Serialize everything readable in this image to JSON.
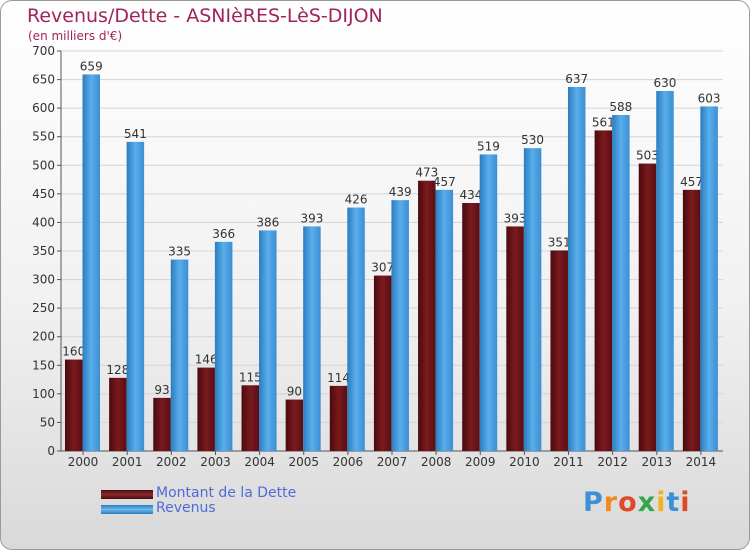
{
  "title": "Revenus/Dette - ASNIèRES-LèS-DIJON",
  "subtitle": "(en milliers d'€)",
  "brand": {
    "text": "Proxiti",
    "colors": [
      "#3d8fd8",
      "#f08a1e",
      "#e0482a",
      "#35a548",
      "#f0b41e",
      "#3d8fd8",
      "#e0482a"
    ]
  },
  "chart_data": {
    "type": "bar",
    "categories": [
      "2000",
      "2001",
      "2002",
      "2003",
      "2004",
      "2005",
      "2006",
      "2007",
      "2008",
      "2009",
      "2010",
      "2011",
      "2012",
      "2013",
      "2014"
    ],
    "series": [
      {
        "name": "Montant de la Dette",
        "color": "#7a1a1e",
        "values": [
          160,
          128,
          93,
          146,
          115,
          90,
          114,
          307,
          473,
          434,
          393,
          351,
          561,
          503,
          457
        ]
      },
      {
        "name": "Revenus",
        "color": "#3d97dc",
        "values": [
          659,
          541,
          335,
          366,
          386,
          393,
          426,
          439,
          457,
          519,
          530,
          637,
          588,
          630,
          603
        ]
      }
    ],
    "ylim": [
      0,
      700
    ],
    "yticks": [
      0,
      50,
      100,
      150,
      200,
      250,
      300,
      350,
      400,
      450,
      500,
      550,
      600,
      650,
      700
    ],
    "grid": true,
    "legend_position": "bottom-left"
  }
}
